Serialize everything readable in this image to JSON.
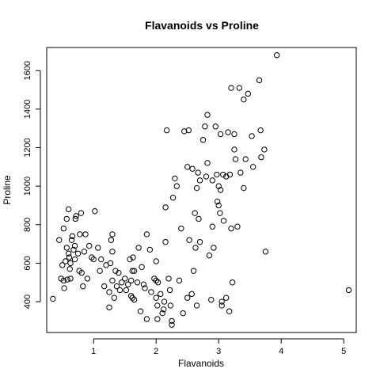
{
  "chart_data": {
    "type": "scatter",
    "title": "Flavanoids vs Proline",
    "xlabel": "Flavanoids",
    "ylabel": "Proline",
    "xlim": [
      0.25,
      5.2
    ],
    "ylim": [
      240,
      1720
    ],
    "xticks": [
      1,
      2,
      3,
      4,
      5
    ],
    "yticks": [
      400,
      600,
      800,
      1000,
      1200,
      1400,
      1600
    ],
    "grid": false,
    "legend": "none",
    "points": [
      [
        0.35,
        415
      ],
      [
        0.45,
        720
      ],
      [
        0.48,
        520
      ],
      [
        0.5,
        590
      ],
      [
        0.52,
        510
      ],
      [
        0.52,
        780
      ],
      [
        0.53,
        470
      ],
      [
        0.55,
        610
      ],
      [
        0.57,
        830
      ],
      [
        0.57,
        680
      ],
      [
        0.58,
        515
      ],
      [
        0.6,
        650
      ],
      [
        0.6,
        880
      ],
      [
        0.61,
        630
      ],
      [
        0.62,
        570
      ],
      [
        0.63,
        520
      ],
      [
        0.63,
        600
      ],
      [
        0.65,
        720
      ],
      [
        0.66,
        740
      ],
      [
        0.68,
        670
      ],
      [
        0.7,
        690
      ],
      [
        0.7,
        620
      ],
      [
        0.71,
        830
      ],
      [
        0.72,
        845
      ],
      [
        0.75,
        650
      ],
      [
        0.77,
        560
      ],
      [
        0.78,
        750
      ],
      [
        0.8,
        860
      ],
      [
        0.81,
        550
      ],
      [
        0.83,
        480
      ],
      [
        0.85,
        660
      ],
      [
        0.87,
        750
      ],
      [
        0.9,
        520
      ],
      [
        0.93,
        690
      ],
      [
        0.97,
        630
      ],
      [
        1.0,
        620
      ],
      [
        1.02,
        870
      ],
      [
        1.07,
        680
      ],
      [
        1.1,
        560
      ],
      [
        1.12,
        620
      ],
      [
        1.17,
        480
      ],
      [
        1.2,
        590
      ],
      [
        1.25,
        370
      ],
      [
        1.25,
        450
      ],
      [
        1.27,
        600
      ],
      [
        1.28,
        720
      ],
      [
        1.3,
        510
      ],
      [
        1.3,
        750
      ],
      [
        1.3,
        660
      ],
      [
        1.33,
        420
      ],
      [
        1.35,
        560
      ],
      [
        1.37,
        480
      ],
      [
        1.4,
        550
      ],
      [
        1.42,
        460
      ],
      [
        1.45,
        500
      ],
      [
        1.5,
        520
      ],
      [
        1.52,
        460
      ],
      [
        1.55,
        490
      ],
      [
        1.58,
        620
      ],
      [
        1.6,
        430
      ],
      [
        1.6,
        510
      ],
      [
        1.62,
        420
      ],
      [
        1.62,
        560
      ],
      [
        1.63,
        630
      ],
      [
        1.65,
        560
      ],
      [
        1.65,
        410
      ],
      [
        1.7,
        500
      ],
      [
        1.72,
        680
      ],
      [
        1.75,
        350
      ],
      [
        1.77,
        580
      ],
      [
        1.8,
        490
      ],
      [
        1.82,
        470
      ],
      [
        1.85,
        750
      ],
      [
        1.85,
        310
      ],
      [
        1.9,
        670
      ],
      [
        1.92,
        450
      ],
      [
        1.97,
        520
      ],
      [
        2.0,
        510
      ],
      [
        2.0,
        420
      ],
      [
        2.0,
        610
      ],
      [
        2.02,
        380
      ],
      [
        2.02,
        310
      ],
      [
        2.03,
        500
      ],
      [
        2.07,
        440
      ],
      [
        2.1,
        340
      ],
      [
        2.12,
        360
      ],
      [
        2.13,
        400
      ],
      [
        2.15,
        890
      ],
      [
        2.15,
        710
      ],
      [
        2.17,
        1290
      ],
      [
        2.2,
        520
      ],
      [
        2.22,
        460
      ],
      [
        2.23,
        380
      ],
      [
        2.25,
        300
      ],
      [
        2.27,
        940
      ],
      [
        2.25,
        280
      ],
      [
        2.3,
        1040
      ],
      [
        2.33,
        1000
      ],
      [
        2.37,
        510
      ],
      [
        2.4,
        780
      ],
      [
        2.43,
        340
      ],
      [
        2.45,
        1285
      ],
      [
        2.5,
        1100
      ],
      [
        2.5,
        420
      ],
      [
        2.52,
        1290
      ],
      [
        2.53,
        720
      ],
      [
        2.57,
        440
      ],
      [
        2.58,
        1090
      ],
      [
        2.6,
        560
      ],
      [
        2.62,
        860
      ],
      [
        2.63,
        680
      ],
      [
        2.65,
        990
      ],
      [
        2.65,
        380
      ],
      [
        2.67,
        1070
      ],
      [
        2.68,
        830
      ],
      [
        2.7,
        1030
      ],
      [
        2.7,
        710
      ],
      [
        2.75,
        1240
      ],
      [
        2.78,
        1310
      ],
      [
        2.8,
        1050
      ],
      [
        2.82,
        1370
      ],
      [
        2.82,
        1120
      ],
      [
        2.85,
        640
      ],
      [
        2.88,
        410
      ],
      [
        2.9,
        790
      ],
      [
        2.9,
        1030
      ],
      [
        2.92,
        680
      ],
      [
        2.95,
        1310
      ],
      [
        2.97,
        1060
      ],
      [
        2.98,
        920
      ],
      [
        3.0,
        900
      ],
      [
        3.0,
        1000
      ],
      [
        3.02,
        860
      ],
      [
        3.03,
        1270
      ],
      [
        3.03,
        980
      ],
      [
        3.05,
        400
      ],
      [
        3.05,
        380
      ],
      [
        3.07,
        1060
      ],
      [
        3.08,
        820
      ],
      [
        3.12,
        1050
      ],
      [
        3.12,
        420
      ],
      [
        3.15,
        1280
      ],
      [
        3.17,
        350
      ],
      [
        3.18,
        1060
      ],
      [
        3.2,
        1510
      ],
      [
        3.2,
        780
      ],
      [
        3.22,
        500
      ],
      [
        3.25,
        1190
      ],
      [
        3.25,
        1270
      ],
      [
        3.27,
        1140
      ],
      [
        3.3,
        790
      ],
      [
        3.33,
        1510
      ],
      [
        3.35,
        1070
      ],
      [
        3.4,
        1450
      ],
      [
        3.4,
        990
      ],
      [
        3.43,
        1140
      ],
      [
        3.47,
        1480
      ],
      [
        3.53,
        1260
      ],
      [
        3.55,
        1100
      ],
      [
        3.65,
        1550
      ],
      [
        3.67,
        1290
      ],
      [
        3.68,
        1150
      ],
      [
        3.73,
        1190
      ],
      [
        3.75,
        660
      ],
      [
        3.93,
        1680
      ],
      [
        5.08,
        460
      ]
    ]
  }
}
